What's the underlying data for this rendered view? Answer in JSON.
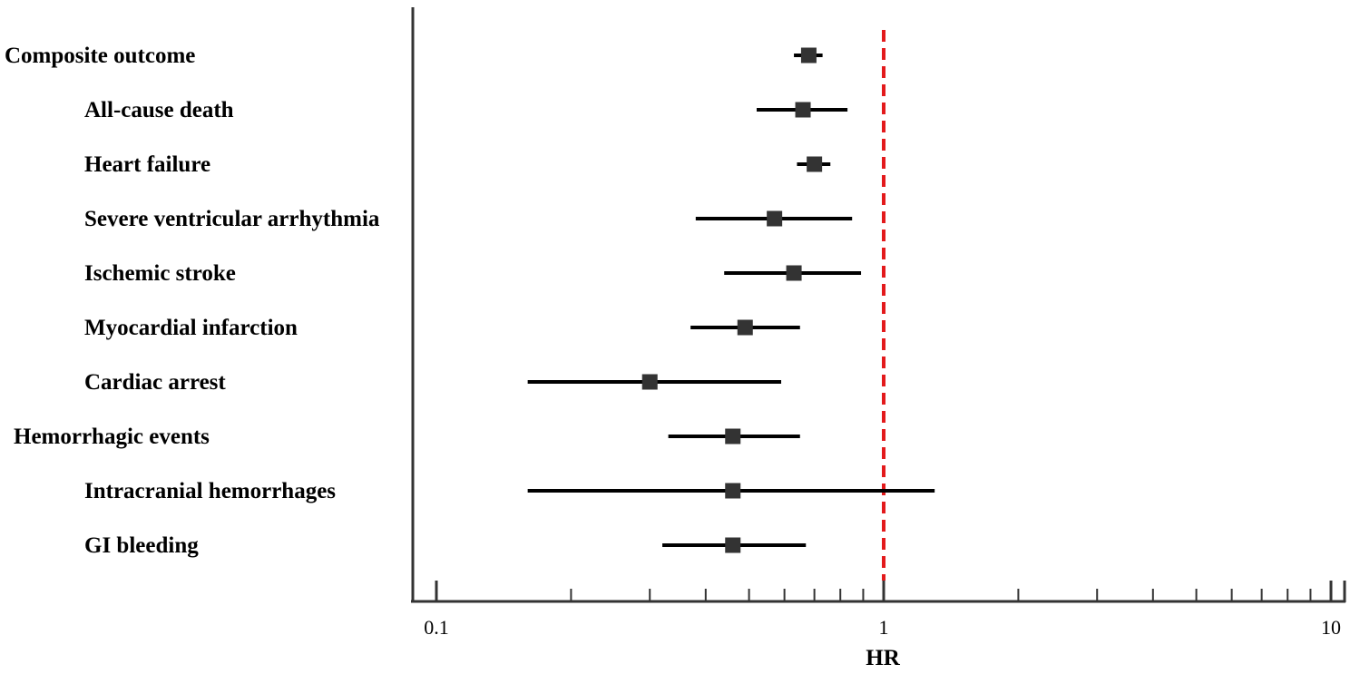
{
  "chart_data": {
    "type": "forest",
    "xlabel": "HR",
    "x_scale": "log",
    "xlim": [
      0.1,
      10
    ],
    "tick_labels": [
      "0.1",
      "1",
      "10"
    ],
    "tick_values": [
      0.1,
      1,
      10
    ],
    "minor_ticks": [
      0.2,
      0.3,
      0.4,
      0.5,
      0.6,
      0.7,
      0.8,
      0.9,
      2,
      3,
      4,
      5,
      6,
      7,
      8,
      9
    ],
    "reference_line": {
      "value": 1,
      "style": "dashed",
      "color": "#e31a1c"
    },
    "grid": false,
    "marker_color": "#333333",
    "line_color": "#000000",
    "rows": [
      {
        "label": "Composite outcome",
        "level": 0,
        "hr": 0.68,
        "lower": 0.63,
        "upper": 0.73
      },
      {
        "label": "All-cause death",
        "level": 1,
        "hr": 0.66,
        "lower": 0.52,
        "upper": 0.83
      },
      {
        "label": "Heart failure",
        "level": 1,
        "hr": 0.7,
        "lower": 0.64,
        "upper": 0.76
      },
      {
        "label": "Severe ventricular arrhythmia",
        "level": 1,
        "hr": 0.57,
        "lower": 0.38,
        "upper": 0.85
      },
      {
        "label": "Ischemic stroke",
        "level": 1,
        "hr": 0.63,
        "lower": 0.44,
        "upper": 0.89
      },
      {
        "label": "Myocardial infarction",
        "level": 1,
        "hr": 0.49,
        "lower": 0.37,
        "upper": 0.65
      },
      {
        "label": "Cardiac arrest",
        "level": 1,
        "hr": 0.3,
        "lower": 0.16,
        "upper": 0.59
      },
      {
        "label": "Hemorrhagic events",
        "level": 0,
        "hr": 0.46,
        "lower": 0.33,
        "upper": 0.65
      },
      {
        "label": "Intracranial hemorrhages",
        "level": 1,
        "hr": 0.46,
        "lower": 0.16,
        "upper": 1.3
      },
      {
        "label": "GI bleeding",
        "level": 1,
        "hr": 0.46,
        "lower": 0.32,
        "upper": 0.67
      }
    ]
  }
}
